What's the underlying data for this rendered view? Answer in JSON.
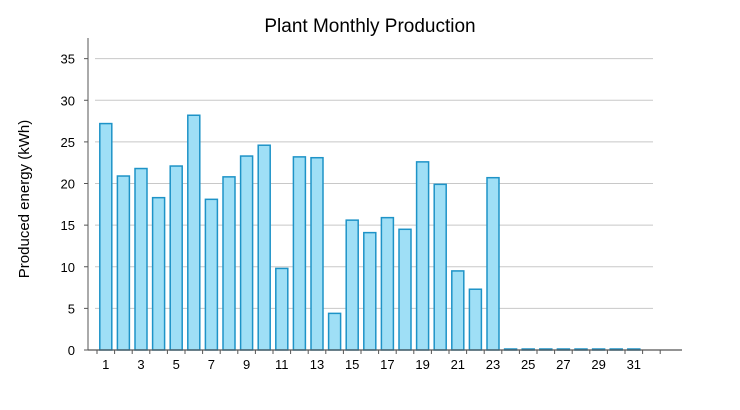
{
  "chart_data": {
    "type": "bar",
    "title": "Plant Monthly Production",
    "xlabel": "",
    "ylabel": "Produced energy (kWh)",
    "ylim": [
      0,
      37
    ],
    "yticks": [
      0,
      5,
      10,
      15,
      20,
      25,
      30,
      35
    ],
    "xtick_labels": [
      1,
      3,
      5,
      7,
      9,
      11,
      13,
      15,
      17,
      19,
      21,
      23,
      25,
      27,
      29,
      31
    ],
    "grid": true,
    "legend": "none",
    "categories": [
      1,
      2,
      3,
      4,
      5,
      6,
      7,
      8,
      9,
      10,
      11,
      12,
      13,
      14,
      15,
      16,
      17,
      18,
      19,
      20,
      21,
      22,
      23,
      24,
      25,
      26,
      27,
      28,
      29,
      30,
      31
    ],
    "values": [
      27.2,
      20.9,
      21.8,
      18.3,
      22.1,
      28.2,
      18.1,
      20.8,
      23.3,
      24.6,
      9.8,
      23.2,
      23.1,
      4.4,
      15.6,
      14.1,
      15.9,
      14.5,
      22.6,
      19.9,
      9.5,
      7.3,
      20.7,
      0.1,
      0.1,
      0.1,
      0.1,
      0.1,
      0.1,
      0.1,
      0.1
    ],
    "colors": {
      "bar_fill": "#9fdff6",
      "bar_stroke": "#1e93c7",
      "grid": "#c8c8c8",
      "axis": "#555555"
    }
  }
}
